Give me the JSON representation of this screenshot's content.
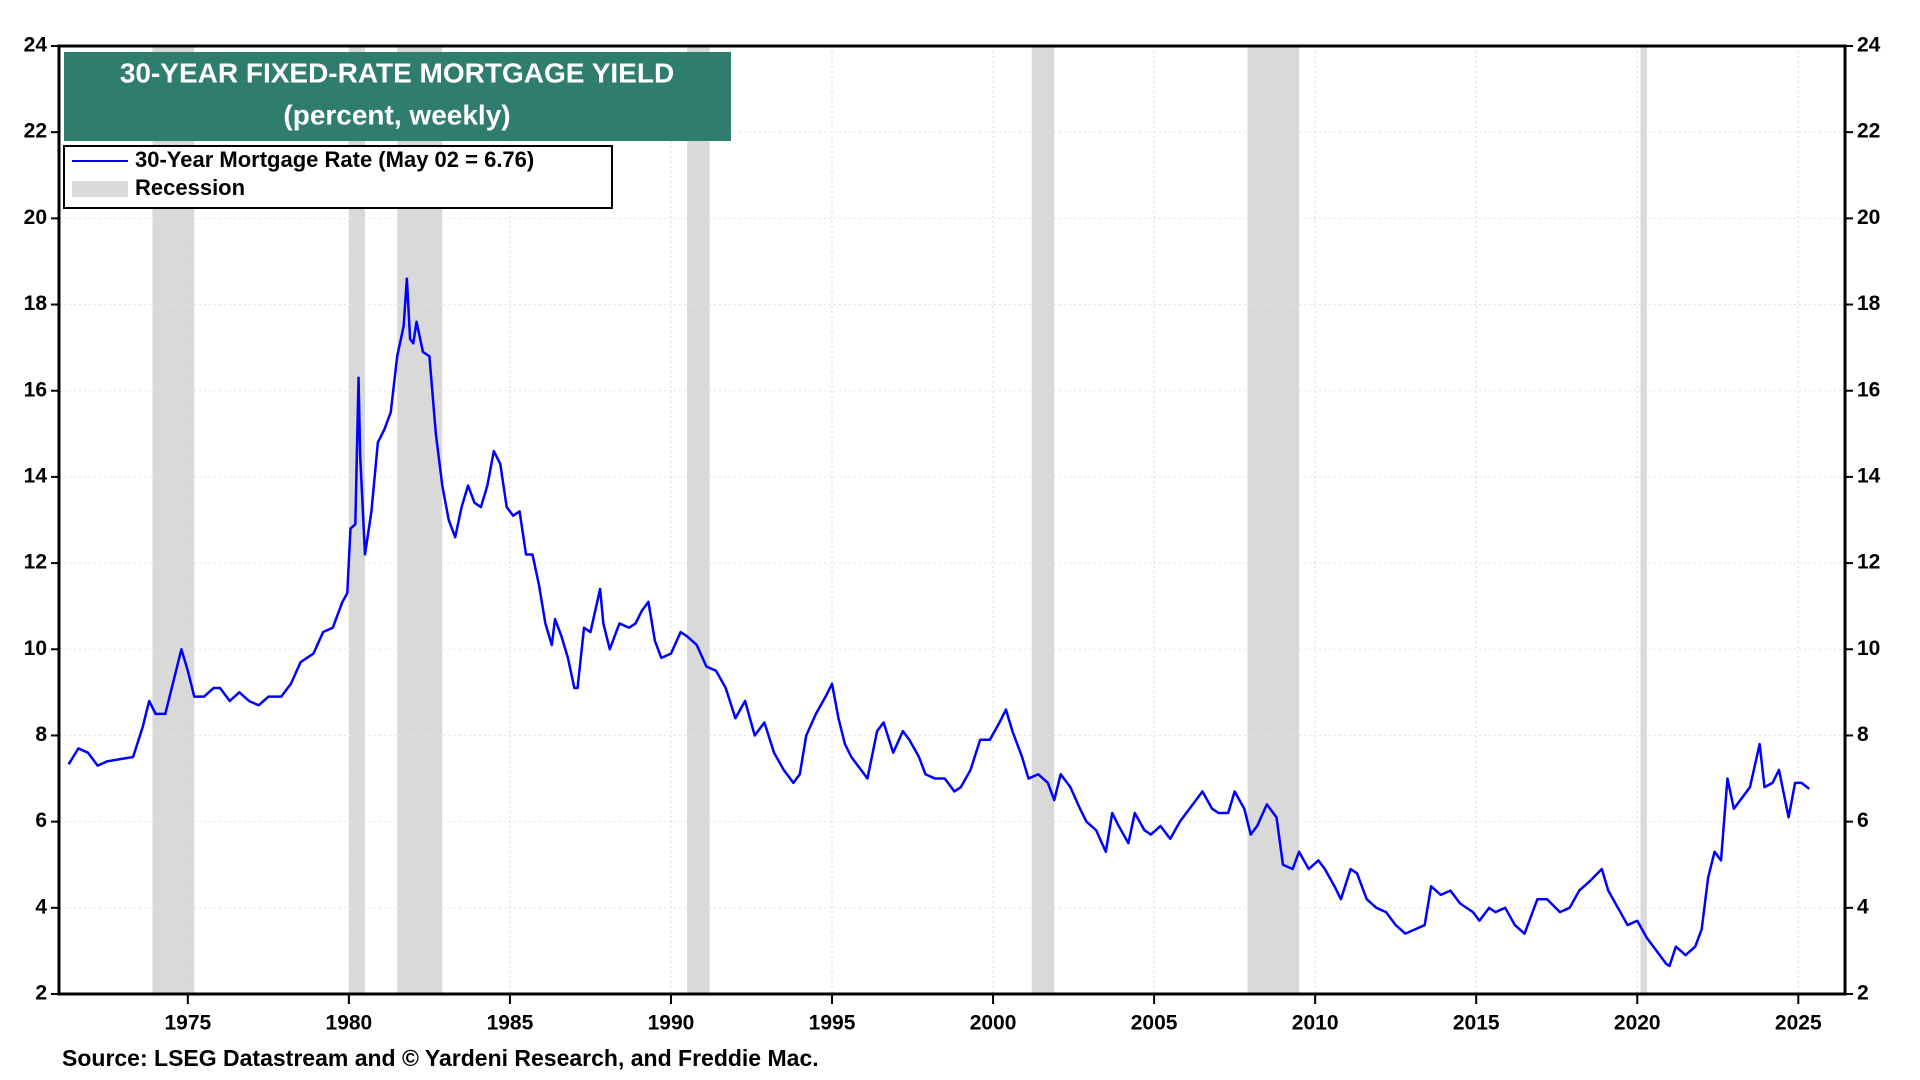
{
  "chart_data": {
    "type": "line",
    "title": "30-YEAR FIXED-RATE MORTGAGE YIELD",
    "subtitle": "(percent, weekly)",
    "source": "Source: LSEG Datastream and © Yardeni Research, and Freddie Mac.",
    "xlim": [
      1971.0,
      2026.45
    ],
    "xticks": [
      1975,
      1980,
      1985,
      1990,
      1995,
      2000,
      2005,
      2010,
      2015,
      2020,
      2025
    ],
    "ylim": [
      2,
      24
    ],
    "yticks": [
      2,
      4,
      6,
      8,
      10,
      12,
      14,
      16,
      18,
      20,
      22,
      24
    ],
    "grid": true,
    "legend": "upper left",
    "recessions": {
      "name": "Recession",
      "color": "#d9d9d9",
      "spans": [
        [
          1973.9,
          1975.2
        ],
        [
          1980.0,
          1980.5
        ],
        [
          1981.5,
          1982.9
        ],
        [
          1990.5,
          1991.2
        ],
        [
          2001.2,
          2001.9
        ],
        [
          2007.9,
          2009.5
        ],
        [
          2020.1,
          2020.3
        ]
      ]
    },
    "series": [
      {
        "name": "30-Year Mortgage Rate (May 02 = 6.76)",
        "color": "#0000ff",
        "x": [
          1971.3,
          1971.6,
          1971.9,
          1972.2,
          1972.5,
          1972.9,
          1973.3,
          1973.6,
          1973.8,
          1974.0,
          1974.3,
          1974.6,
          1974.8,
          1975.0,
          1975.2,
          1975.5,
          1975.8,
          1976.0,
          1976.3,
          1976.6,
          1976.9,
          1977.2,
          1977.5,
          1977.9,
          1978.2,
          1978.5,
          1978.9,
          1979.2,
          1979.5,
          1979.8,
          1979.95,
          1980.05,
          1980.2,
          1980.3,
          1980.35,
          1980.5,
          1980.7,
          1980.9,
          1981.1,
          1981.3,
          1981.5,
          1981.7,
          1981.8,
          1981.9,
          1982.0,
          1982.1,
          1982.3,
          1982.5,
          1982.7,
          1982.9,
          1983.1,
          1983.3,
          1983.5,
          1983.7,
          1983.9,
          1984.1,
          1984.3,
          1984.5,
          1984.7,
          1984.9,
          1985.1,
          1985.3,
          1985.5,
          1985.7,
          1985.9,
          1986.1,
          1986.3,
          1986.4,
          1986.6,
          1986.8,
          1987.0,
          1987.1,
          1987.3,
          1987.5,
          1987.8,
          1987.9,
          1988.1,
          1988.4,
          1988.7,
          1988.9,
          1989.1,
          1989.3,
          1989.5,
          1989.7,
          1990.0,
          1990.3,
          1990.5,
          1990.8,
          1991.1,
          1991.4,
          1991.7,
          1992.0,
          1992.3,
          1992.6,
          1992.9,
          1993.2,
          1993.5,
          1993.8,
          1994.0,
          1994.2,
          1994.5,
          1994.8,
          1995.0,
          1995.2,
          1995.4,
          1995.6,
          1995.9,
          1996.1,
          1996.4,
          1996.6,
          1996.9,
          1997.2,
          1997.4,
          1997.7,
          1997.9,
          1998.2,
          1998.5,
          1998.8,
          1999.0,
          1999.3,
          1999.6,
          1999.9,
          2000.2,
          2000.4,
          2000.6,
          2000.9,
          2001.1,
          2001.4,
          2001.7,
          2001.9,
          2002.1,
          2002.4,
          2002.7,
          2002.9,
          2003.2,
          2003.5,
          2003.7,
          2003.9,
          2004.2,
          2004.4,
          2004.7,
          2004.9,
          2005.2,
          2005.5,
          2005.8,
          2006.0,
          2006.3,
          2006.5,
          2006.8,
          2007.0,
          2007.3,
          2007.5,
          2007.8,
          2008.0,
          2008.2,
          2008.5,
          2008.8,
          2009.0,
          2009.3,
          2009.5,
          2009.8,
          2010.1,
          2010.3,
          2010.6,
          2010.8,
          2011.1,
          2011.3,
          2011.6,
          2011.9,
          2012.2,
          2012.5,
          2012.8,
          2013.1,
          2013.4,
          2013.6,
          2013.9,
          2014.2,
          2014.5,
          2014.9,
          2015.1,
          2015.4,
          2015.6,
          2015.9,
          2016.2,
          2016.5,
          2016.9,
          2017.2,
          2017.6,
          2017.9,
          2018.2,
          2018.5,
          2018.9,
          2019.1,
          2019.4,
          2019.7,
          2020.0,
          2020.3,
          2020.6,
          2020.9,
          2021.0,
          2021.2,
          2021.5,
          2021.8,
          2022.0,
          2022.2,
          2022.4,
          2022.6,
          2022.8,
          2023.0,
          2023.2,
          2023.5,
          2023.8,
          2023.95,
          2024.2,
          2024.4,
          2024.7,
          2024.9,
          2025.1,
          2025.34
        ],
        "values": [
          7.33,
          7.7,
          7.6,
          7.3,
          7.4,
          7.45,
          7.5,
          8.2,
          8.8,
          8.5,
          8.5,
          9.4,
          10.0,
          9.5,
          8.9,
          8.9,
          9.1,
          9.1,
          8.8,
          9.0,
          8.8,
          8.7,
          8.9,
          8.9,
          9.2,
          9.7,
          9.9,
          10.4,
          10.5,
          11.1,
          11.3,
          12.8,
          12.9,
          16.3,
          14.5,
          12.2,
          13.2,
          14.8,
          15.1,
          15.5,
          16.8,
          17.5,
          18.6,
          17.2,
          17.1,
          17.6,
          16.9,
          16.8,
          15.0,
          13.8,
          13.0,
          12.6,
          13.3,
          13.8,
          13.4,
          13.3,
          13.8,
          14.6,
          14.3,
          13.3,
          13.1,
          13.2,
          12.2,
          12.2,
          11.5,
          10.6,
          10.1,
          10.7,
          10.3,
          9.8,
          9.1,
          9.1,
          10.5,
          10.4,
          11.4,
          10.6,
          10.0,
          10.6,
          10.5,
          10.6,
          10.9,
          11.1,
          10.2,
          9.8,
          9.9,
          10.4,
          10.3,
          10.1,
          9.6,
          9.5,
          9.1,
          8.4,
          8.8,
          8.0,
          8.3,
          7.6,
          7.2,
          6.9,
          7.1,
          8.0,
          8.5,
          8.9,
          9.2,
          8.4,
          7.8,
          7.5,
          7.2,
          7.0,
          8.1,
          8.3,
          7.6,
          8.1,
          7.9,
          7.5,
          7.1,
          7.0,
          7.0,
          6.7,
          6.8,
          7.2,
          7.9,
          7.9,
          8.3,
          8.6,
          8.1,
          7.5,
          7.0,
          7.1,
          6.9,
          6.5,
          7.1,
          6.8,
          6.3,
          6.0,
          5.8,
          5.3,
          6.2,
          5.9,
          5.5,
          6.2,
          5.8,
          5.7,
          5.9,
          5.6,
          6.0,
          6.2,
          6.5,
          6.7,
          6.3,
          6.2,
          6.2,
          6.7,
          6.3,
          5.7,
          5.9,
          6.4,
          6.1,
          5.0,
          4.9,
          5.3,
          4.9,
          5.1,
          4.9,
          4.5,
          4.2,
          4.9,
          4.8,
          4.2,
          4.0,
          3.9,
          3.6,
          3.4,
          3.5,
          3.6,
          4.5,
          4.3,
          4.4,
          4.1,
          3.9,
          3.7,
          4.0,
          3.9,
          4.0,
          3.6,
          3.4,
          4.2,
          4.2,
          3.9,
          4.0,
          4.4,
          4.6,
          4.9,
          4.4,
          4.0,
          3.6,
          3.7,
          3.3,
          3.0,
          2.7,
          2.65,
          3.1,
          2.9,
          3.1,
          3.5,
          4.7,
          5.3,
          5.1,
          7.0,
          6.3,
          6.5,
          6.8,
          7.8,
          6.8,
          6.9,
          7.2,
          6.1,
          6.9,
          6.9,
          6.76
        ]
      }
    ]
  }
}
